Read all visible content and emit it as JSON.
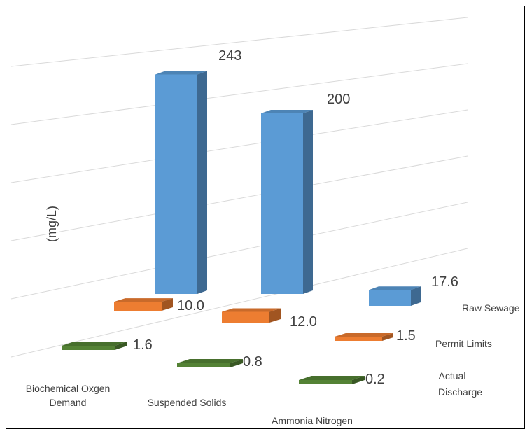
{
  "chart_data": {
    "type": "bar",
    "style": "3d-column",
    "ylabel": "(mg/L)",
    "categories": [
      "Biochemical Oxgen Demand",
      "Suspended Solids",
      "Ammonia Nitrogen"
    ],
    "series": [
      {
        "name": "Raw Sewage",
        "values": [
          243,
          200,
          17.6
        ],
        "labels": [
          "243",
          "200",
          "17.6"
        ],
        "color": "#5b9bd5"
      },
      {
        "name": "Permit Limits",
        "values": [
          10.0,
          12.0,
          1.5
        ],
        "labels": [
          "10.0",
          "12.0",
          "1.5"
        ],
        "color": "#ed7d31"
      },
      {
        "name": "Actual Discharge",
        "values": [
          1.6,
          0.8,
          0.2
        ],
        "labels": [
          "1.6",
          "0.8",
          "0.2"
        ],
        "color": "#548235"
      }
    ],
    "ylim": [
      0,
      300
    ],
    "grid": true,
    "legend": "none"
  }
}
